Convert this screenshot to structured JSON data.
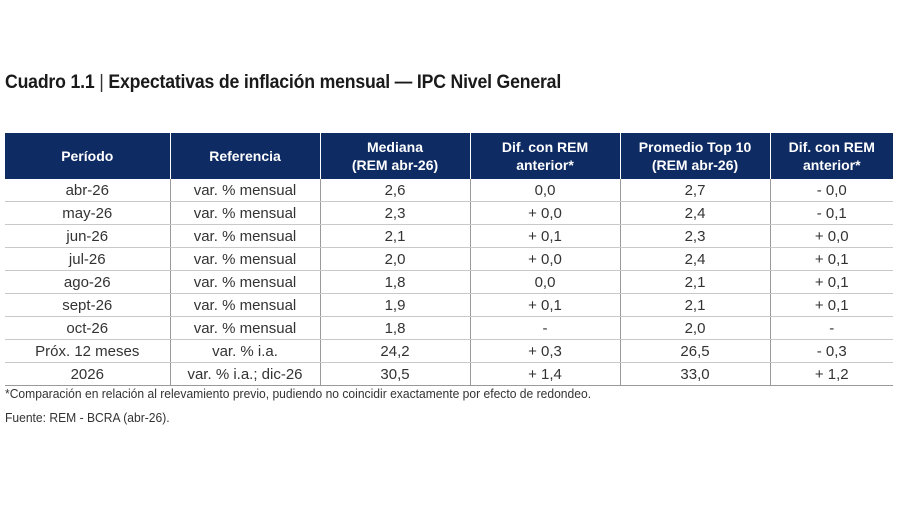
{
  "title": {
    "prefix": "Cuadro 1.1",
    "separator": "|",
    "text": "Expectativas de inflación mensual — IPC Nivel General"
  },
  "headers": [
    {
      "line1": "Período",
      "line2": ""
    },
    {
      "line1": "Referencia",
      "line2": ""
    },
    {
      "line1": "Mediana",
      "line2": "(REM abr-26)"
    },
    {
      "line1": "Dif. con REM",
      "line2": "anterior*"
    },
    {
      "line1": "Promedio Top 10",
      "line2": "(REM abr-26)"
    },
    {
      "line1": "Dif. con REM",
      "line2": "anterior*"
    }
  ],
  "rows": [
    [
      "abr-26",
      "var. % mensual",
      "2,6",
      "0,0",
      "2,7",
      "- 0,0"
    ],
    [
      "may-26",
      "var. % mensual",
      "2,3",
      "+ 0,0",
      "2,4",
      "- 0,1"
    ],
    [
      "jun-26",
      "var. % mensual",
      "2,1",
      "+ 0,1",
      "2,3",
      "+ 0,0"
    ],
    [
      "jul-26",
      "var. % mensual",
      "2,0",
      "+ 0,0",
      "2,4",
      "+ 0,1"
    ],
    [
      "ago-26",
      "var. % mensual",
      "1,8",
      "0,0",
      "2,1",
      "+ 0,1"
    ],
    [
      "sept-26",
      "var. % mensual",
      "1,9",
      "+ 0,1",
      "2,1",
      "+ 0,1"
    ],
    [
      "oct-26",
      "var. % mensual",
      "1,8",
      "-",
      "2,0",
      "-"
    ],
    [
      "Próx. 12 meses",
      "var. % i.a.",
      "24,2",
      "+ 0,3",
      "26,5",
      "- 0,3"
    ],
    [
      "2026",
      "var. % i.a.; dic-26",
      "30,5",
      "+ 1,4",
      "33,0",
      "+ 1,2"
    ]
  ],
  "footnote": "*Comparación en relación al relevamiento previo, pudiendo no coincidir exactamente por efecto de redondeo.",
  "source": "Fuente: REM - BCRA (abr-26).",
  "colors": {
    "header_bg": "#0e2b63",
    "header_text": "#ffffff"
  }
}
